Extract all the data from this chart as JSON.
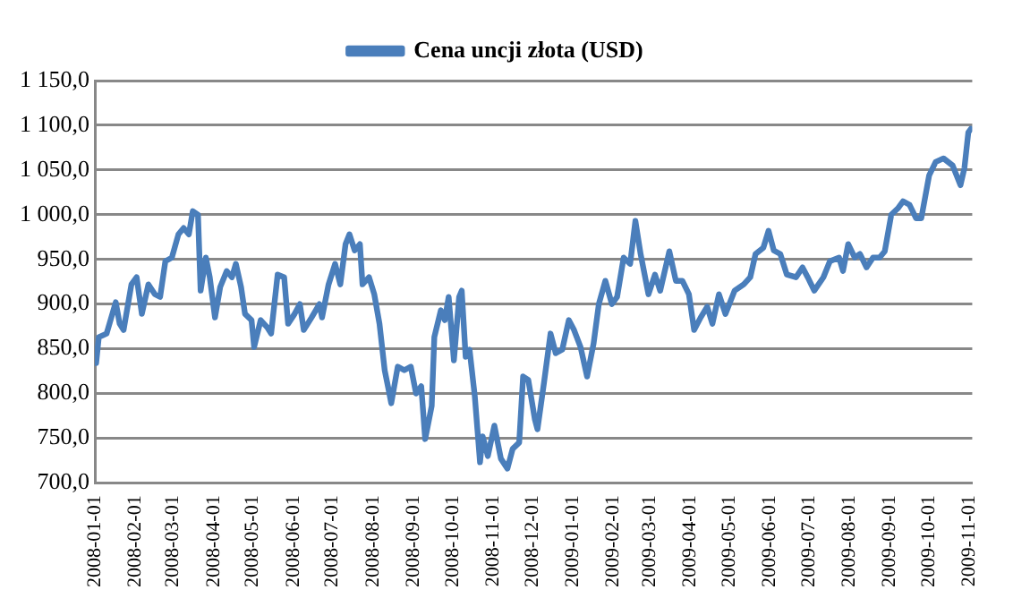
{
  "chart_data": {
    "type": "line",
    "legend": "top",
    "grid": "y",
    "marker": "none",
    "line_style": "solid",
    "xlim": [
      "2008-01-01",
      "2009-11-03"
    ],
    "xticks": [
      "2008-01-01",
      "2008-02-01",
      "2008-03-01",
      "2008-04-01",
      "2008-05-01",
      "2008-06-01",
      "2008-07-01",
      "2008-08-01",
      "2008-09-01",
      "2008-10-01",
      "2008-11-01",
      "2008-12-01",
      "2009-01-01",
      "2009-02-01",
      "2009-03-01",
      "2009-04-01",
      "2009-05-01",
      "2009-06-01",
      "2009-07-01",
      "2009-08-01",
      "2009-09-01",
      "2009-10-01",
      "2009-11-01"
    ],
    "ylim": [
      700,
      1150
    ],
    "yticks": [
      {
        "value": 700,
        "label": "700,0"
      },
      {
        "value": 750,
        "label": "750,0"
      },
      {
        "value": 800,
        "label": "800,0"
      },
      {
        "value": 850,
        "label": "850,0"
      },
      {
        "value": 900,
        "label": "900,0"
      },
      {
        "value": 950,
        "label": "950,0"
      },
      {
        "value": 1000,
        "label": "1 000,0"
      },
      {
        "value": 1050,
        "label": "1 050,0"
      },
      {
        "value": 1100,
        "label": "1 100,0"
      },
      {
        "value": 1150,
        "label": "1 150,0"
      }
    ],
    "x": [
      "2008-01-02",
      "2008-01-04",
      "2008-01-10",
      "2008-01-17",
      "2008-01-20",
      "2008-01-23",
      "2008-01-29",
      "2008-02-02",
      "2008-02-06",
      "2008-02-11",
      "2008-02-16",
      "2008-02-20",
      "2008-02-24",
      "2008-02-29",
      "2008-03-05",
      "2008-03-09",
      "2008-03-13",
      "2008-03-16",
      "2008-03-20",
      "2008-03-22",
      "2008-03-26",
      "2008-03-29",
      "2008-04-02",
      "2008-04-06",
      "2008-04-11",
      "2008-04-15",
      "2008-04-18",
      "2008-04-22",
      "2008-04-25",
      "2008-04-30",
      "2008-05-02",
      "2008-05-07",
      "2008-05-12",
      "2008-05-15",
      "2008-05-20",
      "2008-05-25",
      "2008-05-28",
      "2008-06-02",
      "2008-06-06",
      "2008-06-09",
      "2008-06-15",
      "2008-06-21",
      "2008-06-23",
      "2008-06-28",
      "2008-07-03",
      "2008-07-07",
      "2008-07-11",
      "2008-07-14",
      "2008-07-18",
      "2008-07-22",
      "2008-07-24",
      "2008-07-29",
      "2008-08-02",
      "2008-08-06",
      "2008-08-10",
      "2008-08-13",
      "2008-08-15",
      "2008-08-20",
      "2008-08-25",
      "2008-08-30",
      "2008-09-03",
      "2008-09-07",
      "2008-09-10",
      "2008-09-15",
      "2008-09-17",
      "2008-09-22",
      "2008-09-25",
      "2008-09-28",
      "2008-10-02",
      "2008-10-06",
      "2008-10-08",
      "2008-10-11",
      "2008-10-14",
      "2008-10-18",
      "2008-10-20",
      "2008-10-22",
      "2008-10-24",
      "2008-10-28",
      "2008-11-02",
      "2008-11-07",
      "2008-11-12",
      "2008-11-16",
      "2008-11-21",
      "2008-11-24",
      "2008-11-28",
      "2008-12-03",
      "2008-12-05",
      "2008-12-10",
      "2008-12-15",
      "2008-12-19",
      "2008-12-24",
      "2008-12-29",
      "2009-01-02",
      "2009-01-07",
      "2009-01-12",
      "2009-01-17",
      "2009-01-21",
      "2009-01-26",
      "2009-01-31",
      "2009-02-04",
      "2009-02-09",
      "2009-02-14",
      "2009-02-18",
      "2009-02-22",
      "2009-02-28",
      "2009-03-05",
      "2009-03-09",
      "2009-03-16",
      "2009-03-21",
      "2009-03-26",
      "2009-03-31",
      "2009-04-04",
      "2009-04-09",
      "2009-04-14",
      "2009-04-18",
      "2009-04-23",
      "2009-04-28",
      "2009-05-05",
      "2009-05-12",
      "2009-05-17",
      "2009-05-21",
      "2009-05-27",
      "2009-05-31",
      "2009-06-04",
      "2009-06-09",
      "2009-06-14",
      "2009-06-21",
      "2009-06-26",
      "2009-06-30",
      "2009-07-05",
      "2009-07-12",
      "2009-07-17",
      "2009-07-24",
      "2009-07-27",
      "2009-07-31",
      "2009-08-05",
      "2009-08-09",
      "2009-08-14",
      "2009-08-19",
      "2009-08-24",
      "2009-08-28",
      "2009-09-02",
      "2009-09-07",
      "2009-09-11",
      "2009-09-16",
      "2009-09-21",
      "2009-09-25",
      "2009-10-01",
      "2009-10-06",
      "2009-10-12",
      "2009-10-19",
      "2009-10-25",
      "2009-10-28",
      "2009-10-31",
      "2009-11-02"
    ],
    "series": [
      {
        "name": "Cena uncji złota (USD)",
        "color": "#4a7ebb",
        "values": [
          834,
          863,
          867,
          902,
          878,
          871,
          922,
          930,
          889,
          922,
          911,
          908,
          948,
          952,
          978,
          985,
          978,
          1004,
          1000,
          915,
          952,
          930,
          885,
          919,
          937,
          930,
          945,
          919,
          889,
          882,
          852,
          882,
          874,
          867,
          933,
          930,
          878,
          889,
          900,
          871,
          885,
          900,
          885,
          922,
          945,
          922,
          967,
          978,
          960,
          967,
          922,
          930,
          911,
          878,
          826,
          804,
          789,
          830,
          826,
          830,
          800,
          808,
          749,
          786,
          863,
          893,
          882,
          908,
          837,
          908,
          915,
          841,
          849,
          797,
          760,
          723,
          752,
          730,
          764,
          727,
          716,
          738,
          745,
          819,
          815,
          771,
          760,
          812,
          867,
          845,
          849,
          882,
          871,
          852,
          819,
          856,
          900,
          926,
          900,
          908,
          952,
          945,
          993,
          956,
          911,
          933,
          915,
          959,
          926,
          926,
          911,
          871,
          885,
          897,
          878,
          911,
          889,
          915,
          922,
          930,
          956,
          963,
          982,
          960,
          956,
          933,
          930,
          941,
          930,
          915,
          930,
          948,
          952,
          937,
          967,
          952,
          956,
          941,
          952,
          952,
          959,
          1000,
          1007,
          1015,
          1011,
          996,
          996,
          1044,
          1059,
          1063,
          1055,
          1033,
          1052,
          1092,
          1096
        ]
      }
    ]
  }
}
